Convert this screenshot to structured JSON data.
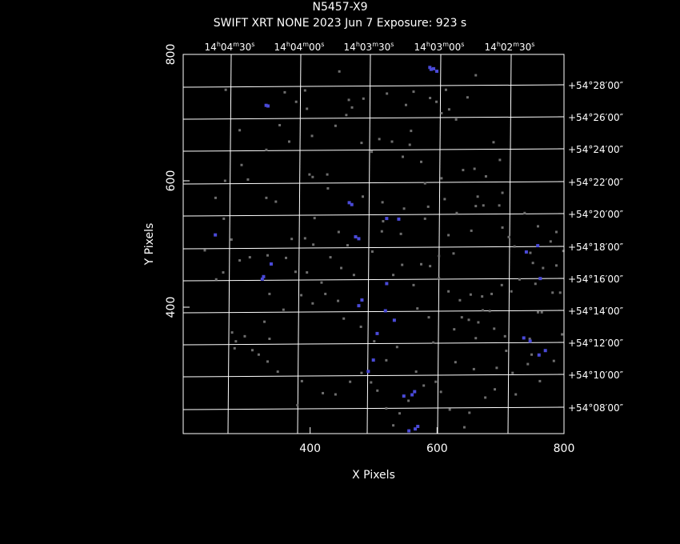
{
  "header": {
    "title": "N5457-X9",
    "subtitle": "SWIFT XRT NONE   2023 Jun  7    Exposure: 923 s"
  },
  "chart_data": {
    "type": "scatter",
    "title": "N5457-X9",
    "subtitle": "SWIFT XRT NONE   2023 Jun  7    Exposure: 923 s",
    "xlabel": "X Pixels",
    "ylabel": "Y Pixels",
    "xlim": [
      200,
      800
    ],
    "ylim": [
      200,
      800
    ],
    "x_ticks": [
      "400",
      "600",
      "800"
    ],
    "y_ticks": [
      "400",
      "600",
      "800"
    ],
    "ra_ticks": [
      "14h04m30s",
      "14h04m00s",
      "14h03m30s",
      "14h03m00s",
      "14h02m30s"
    ],
    "dec_ticks": [
      "+54°28′00″",
      "+54°26′00″",
      "+54°24′00″",
      "+54°22′00″",
      "+54°20′00″",
      "+54°18′00″",
      "+54°16′00″",
      "+54°14′00″",
      "+54°12′00″",
      "+54°10′00″",
      "+54°08′00″"
    ],
    "grid": true,
    "colors": {
      "background": "#000000",
      "frame": "#ffffff",
      "event": "#6e6e6e",
      "source": "#4a4ad8"
    },
    "series": [
      {
        "values": [
          [
            267,
            744
          ],
          [
            360,
            740
          ],
          [
            392,
            743
          ],
          [
            378,
            725
          ],
          [
            395,
            714
          ],
          [
            446,
            773
          ],
          [
            466,
            716
          ],
          [
            457,
            704
          ],
          [
            461,
            728
          ],
          [
            484,
            730
          ],
          [
            521,
            738
          ],
          [
            551,
            720
          ],
          [
            589,
            731
          ],
          [
            607,
            707
          ],
          [
            599,
            725
          ],
          [
            563,
            741
          ],
          [
            614,
            744
          ],
          [
            619,
            713
          ],
          [
            630,
            697
          ],
          [
            648,
            732
          ],
          [
            661,
            767
          ],
          [
            352,
            688
          ],
          [
            289,
            680
          ],
          [
            331,
            649
          ],
          [
            292,
            625
          ],
          [
            302,
            602
          ],
          [
            367,
            662
          ],
          [
            403,
            671
          ],
          [
            404,
            606
          ],
          [
            427,
            610
          ],
          [
            440,
            687
          ],
          [
            481,
            660
          ],
          [
            497,
            646
          ],
          [
            509,
            666
          ],
          [
            529,
            662
          ],
          [
            559,
            679
          ],
          [
            557,
            657
          ],
          [
            546,
            638
          ],
          [
            575,
            630
          ],
          [
            581,
            596
          ],
          [
            607,
            604
          ],
          [
            641,
            617
          ],
          [
            659,
            619
          ],
          [
            677,
            607
          ],
          [
            689,
            661
          ],
          [
            699,
            633
          ],
          [
            703,
            581
          ],
          [
            673,
            561
          ],
          [
            661,
            560
          ],
          [
            581,
            540
          ],
          [
            515,
            536
          ],
          [
            445,
            519
          ],
          [
            407,
            541
          ],
          [
            392,
            509
          ],
          [
            371,
            508
          ],
          [
            346,
            567
          ],
          [
            331,
            573
          ],
          [
            266,
            600
          ],
          [
            251,
            573
          ],
          [
            264,
            540
          ],
          [
            276,
            507
          ],
          [
            289,
            474
          ],
          [
            263,
            455
          ],
          [
            252,
            444
          ],
          [
            234,
            490
          ],
          [
            305,
            479
          ],
          [
            333,
            482
          ],
          [
            362,
            478
          ],
          [
            405,
            499
          ],
          [
            449,
            462
          ],
          [
            469,
            451
          ],
          [
            498,
            488
          ],
          [
            531,
            451
          ],
          [
            545,
            467
          ],
          [
            575,
            468
          ],
          [
            603,
            481
          ],
          [
            618,
            514
          ],
          [
            626,
            485
          ],
          [
            654,
            521
          ],
          [
            703,
            526
          ],
          [
            713,
            511
          ],
          [
            722,
            496
          ],
          [
            747,
            486
          ],
          [
            788,
            519
          ],
          [
            702,
            435
          ],
          [
            686,
            421
          ],
          [
            671,
            417
          ],
          [
            653,
            420
          ],
          [
            636,
            411
          ],
          [
            618,
            425
          ],
          [
            603,
            446
          ],
          [
            589,
            465
          ],
          [
            563,
            435
          ],
          [
            569,
            398
          ],
          [
            587,
            384
          ],
          [
            639,
            384
          ],
          [
            665,
            376
          ],
          [
            683,
            394
          ],
          [
            690,
            366
          ],
          [
            661,
            351
          ],
          [
            707,
            354
          ],
          [
            746,
            350
          ],
          [
            765,
            392
          ],
          [
            794,
            423
          ],
          [
            797,
            357
          ],
          [
            784,
            315
          ],
          [
            743,
            310
          ],
          [
            719,
            296
          ],
          [
            691,
            270
          ],
          [
            676,
            257
          ],
          [
            651,
            233
          ],
          [
            643,
            210
          ],
          [
            620,
            238
          ],
          [
            606,
            266
          ],
          [
            598,
            282
          ],
          [
            579,
            276
          ],
          [
            567,
            298
          ],
          [
            555,
            252
          ],
          [
            541,
            232
          ],
          [
            531,
            213
          ],
          [
            520,
            240
          ],
          [
            506,
            268
          ],
          [
            496,
            281
          ],
          [
            481,
            296
          ],
          [
            463,
            282
          ],
          [
            440,
            262
          ],
          [
            420,
            264
          ],
          [
            387,
            283
          ],
          [
            380,
            245
          ],
          [
            349,
            298
          ],
          [
            333,
            314
          ],
          [
            319,
            325
          ],
          [
            297,
            354
          ],
          [
            281,
            335
          ],
          [
            277,
            360
          ],
          [
            328,
            377
          ],
          [
            336,
            421
          ],
          [
            377,
            456
          ],
          [
            395,
            455
          ],
          [
            418,
            439
          ],
          [
            432,
            479
          ],
          [
            459,
            498
          ],
          [
            513,
            520
          ],
          [
            543,
            516
          ],
          [
            594,
            344
          ],
          [
            629,
            313
          ],
          [
            658,
            302
          ],
          [
            694,
            304
          ],
          [
            709,
            331
          ],
          [
            749,
            325
          ],
          [
            762,
            283
          ],
          [
            724,
            262
          ],
          [
            759,
            392
          ],
          [
            782,
            423
          ],
          [
            755,
            437
          ],
          [
            730,
            444
          ],
          [
            717,
            425
          ],
          [
            672,
            395
          ],
          [
            650,
            380
          ],
          [
            627,
            365
          ],
          [
            537,
            337
          ],
          [
            520,
            316
          ],
          [
            501,
            346
          ],
          [
            480,
            369
          ],
          [
            453,
            382
          ],
          [
            444,
            410
          ],
          [
            424,
            421
          ],
          [
            404,
            406
          ],
          [
            386,
            419
          ],
          [
            358,
            396
          ],
          [
            336,
            350
          ],
          [
            309,
            332
          ],
          [
            283,
            346
          ],
          [
            399,
            610
          ],
          [
            428,
            588
          ],
          [
            483,
            575
          ],
          [
            514,
            566
          ],
          [
            548,
            556
          ],
          [
            586,
            559
          ],
          [
            612,
            571
          ],
          [
            631,
            549
          ],
          [
            664,
            575
          ],
          [
            698,
            561
          ],
          [
            738,
            549
          ],
          [
            759,
            528
          ],
          [
            779,
            504
          ],
          [
            799,
            489
          ],
          [
            788,
            466
          ],
          [
            767,
            462
          ],
          [
            751,
            470
          ]
        ]
      },
      {
        "values": [
          [
            590,
            777
          ],
          [
            594,
            778
          ],
          [
            588,
            780
          ],
          [
            599,
            774
          ],
          [
            330,
            720
          ],
          [
            333,
            719
          ],
          [
            465,
            563
          ],
          [
            461,
            566
          ],
          [
            539,
            540
          ],
          [
            520,
            541
          ],
          [
            471,
            512
          ],
          [
            476,
            509
          ],
          [
            520,
            438
          ],
          [
            518,
            395
          ],
          [
            532,
            380
          ],
          [
            758,
            498
          ],
          [
            740,
            488
          ],
          [
            807,
            506
          ],
          [
            801,
            509
          ],
          [
            810,
            508
          ],
          [
            762,
            446
          ],
          [
            746,
            347
          ],
          [
            736,
            352
          ],
          [
            760,
            325
          ],
          [
            770,
            332
          ],
          [
            505,
            359
          ],
          [
            499,
            317
          ],
          [
            491,
            299
          ],
          [
            476,
            403
          ],
          [
            481,
            412
          ],
          [
            250,
            515
          ],
          [
            338,
            469
          ],
          [
            324,
            445
          ],
          [
            326,
            449
          ],
          [
            564,
            267
          ],
          [
            560,
            262
          ],
          [
            569,
            212
          ],
          [
            547,
            260
          ],
          [
            555,
            205
          ],
          [
            565,
            208
          ]
        ]
      }
    ]
  }
}
